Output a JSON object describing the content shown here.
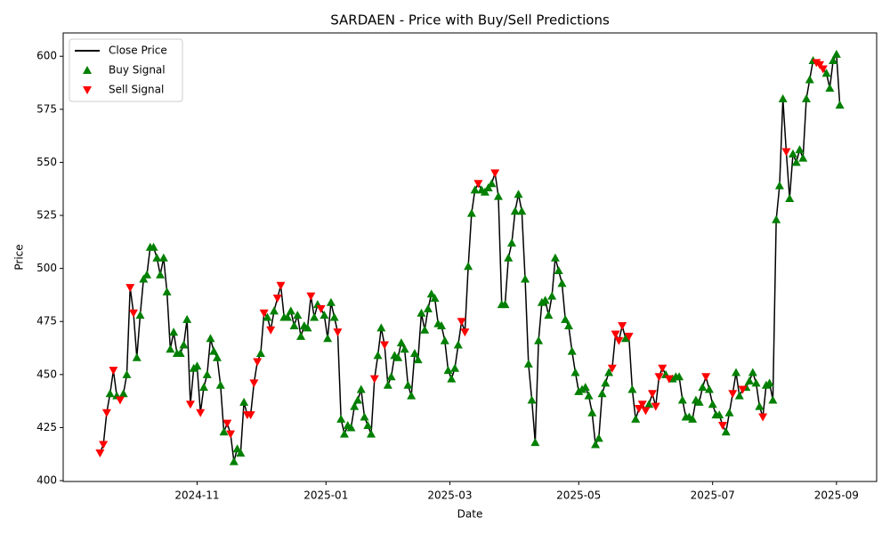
{
  "chart_data": {
    "type": "line",
    "title": "SARDAEN - Price with Buy/Sell Predictions",
    "x_label": "Date",
    "y_label": "Price",
    "categories": [
      null,
      null,
      null,
      null,
      null,
      null,
      null,
      null,
      null,
      null,
      null,
      null,
      null,
      null,
      null,
      null,
      null,
      null,
      null,
      null,
      null,
      null,
      null,
      null,
      null,
      null,
      null,
      null,
      null,
      null,
      null,
      null,
      null,
      null,
      null,
      null,
      null,
      null,
      null,
      null,
      null,
      null,
      null,
      null,
      null,
      null,
      null,
      null,
      null,
      null,
      null,
      null,
      null,
      null,
      null,
      null,
      null,
      null,
      null,
      null,
      null,
      null,
      null,
      null,
      null,
      null,
      null,
      null,
      null,
      null,
      null,
      null,
      null,
      null,
      null,
      null,
      null,
      null,
      null,
      null,
      null,
      null,
      null,
      null,
      null,
      null,
      null,
      null,
      null,
      null,
      null,
      null,
      null,
      null,
      null,
      null,
      null,
      null,
      null,
      null,
      null,
      null,
      null,
      null,
      null,
      null,
      null,
      null,
      null,
      null,
      null,
      null,
      null,
      null,
      null,
      null,
      null,
      null,
      null,
      null,
      null,
      null,
      null,
      null,
      null,
      null,
      null,
      null,
      null,
      null,
      null,
      null,
      null,
      null,
      null,
      null,
      null,
      null,
      null,
      null,
      null,
      null,
      null,
      null,
      null,
      null,
      null,
      null,
      null,
      null,
      null,
      null,
      null,
      null,
      null,
      null,
      null,
      null,
      null,
      null,
      null,
      null,
      null,
      null,
      null,
      null,
      null,
      null,
      null,
      null,
      null,
      null,
      null,
      null,
      null,
      null,
      null,
      null,
      null,
      null,
      null,
      null,
      null,
      null,
      null,
      null,
      null,
      null,
      null,
      null,
      null,
      null,
      null,
      null,
      null,
      null,
      null,
      null,
      null,
      null,
      null,
      null,
      null,
      null,
      null,
      null,
      null,
      null,
      null,
      null,
      null,
      null,
      null,
      null,
      null,
      null,
      null,
      null,
      null,
      null,
      null,
      null
    ],
    "series": [
      {
        "name": "Close Price",
        "color": "#000000",
        "values": [
          413,
          417,
          432,
          441,
          452,
          440,
          438,
          441,
          450,
          491,
          479,
          458,
          478,
          495,
          497,
          510,
          510,
          505,
          497,
          505,
          489,
          462,
          470,
          460,
          460,
          464,
          476,
          436,
          453,
          454,
          432,
          444,
          450,
          467,
          461,
          458,
          445,
          423,
          427,
          422,
          409,
          415,
          413,
          437,
          431,
          431,
          446,
          456,
          460,
          479,
          477,
          471,
          480,
          486,
          492,
          477,
          477,
          480,
          473,
          478,
          468,
          473,
          472,
          487,
          477,
          483,
          481,
          478,
          467,
          484,
          477,
          470,
          429,
          422,
          426,
          425,
          435,
          438,
          443,
          430,
          426,
          422,
          448,
          459,
          472,
          464,
          445,
          449,
          459,
          458,
          465,
          462,
          445,
          440,
          460,
          457,
          479,
          471,
          481,
          488,
          486,
          474,
          473,
          466,
          452,
          448,
          453,
          464,
          475,
          470,
          501,
          526,
          537,
          540,
          537,
          536,
          538,
          540,
          545,
          534,
          483,
          483,
          505,
          512,
          527,
          535,
          527,
          495,
          455,
          438,
          418,
          466,
          484,
          485,
          478,
          487,
          505,
          499,
          493,
          476,
          473,
          461,
          451,
          442,
          443,
          444,
          440,
          432,
          417,
          420,
          441,
          446,
          451,
          453,
          469,
          466,
          473,
          467,
          468,
          443,
          429,
          434,
          436,
          433,
          436,
          441,
          435,
          449,
          453,
          450,
          448,
          448,
          449,
          449,
          438,
          430,
          430,
          429,
          438,
          437,
          444,
          449,
          443,
          436,
          431,
          431,
          426,
          423,
          432,
          441,
          451,
          440,
          443,
          444,
          447,
          451,
          446,
          435,
          430,
          445,
          446,
          438,
          523,
          539,
          580,
          555,
          533,
          554,
          550,
          556,
          552,
          580,
          589,
          598,
          597,
          596,
          594,
          592,
          585,
          598,
          601,
          577
        ]
      },
      {
        "name": "Buy Signal",
        "color": "#008000",
        "marker": "triangle-up",
        "values": [
          null,
          null,
          null,
          441,
          null,
          440,
          null,
          441,
          450,
          null,
          null,
          458,
          478,
          495,
          497,
          510,
          510,
          505,
          497,
          505,
          489,
          462,
          470,
          460,
          460,
          464,
          476,
          null,
          453,
          454,
          null,
          444,
          450,
          467,
          461,
          458,
          445,
          423,
          null,
          null,
          409,
          415,
          413,
          437,
          null,
          null,
          null,
          null,
          460,
          null,
          477,
          null,
          480,
          null,
          null,
          477,
          477,
          480,
          473,
          478,
          468,
          473,
          472,
          null,
          477,
          483,
          null,
          478,
          467,
          484,
          477,
          null,
          429,
          422,
          426,
          425,
          435,
          438,
          443,
          430,
          426,
          422,
          null,
          459,
          472,
          null,
          445,
          449,
          459,
          458,
          465,
          462,
          445,
          440,
          460,
          457,
          479,
          471,
          481,
          488,
          486,
          474,
          473,
          466,
          452,
          448,
          453,
          464,
          null,
          null,
          501,
          526,
          537,
          null,
          537,
          536,
          538,
          540,
          null,
          534,
          483,
          483,
          505,
          512,
          527,
          535,
          527,
          495,
          455,
          438,
          418,
          466,
          484,
          485,
          478,
          487,
          505,
          499,
          493,
          476,
          473,
          461,
          451,
          442,
          443,
          444,
          440,
          432,
          417,
          420,
          441,
          446,
          451,
          null,
          null,
          null,
          null,
          467,
          null,
          443,
          429,
          null,
          null,
          null,
          436,
          null,
          null,
          null,
          null,
          450,
          null,
          448,
          449,
          449,
          438,
          430,
          430,
          429,
          438,
          437,
          444,
          null,
          443,
          436,
          431,
          431,
          null,
          423,
          432,
          null,
          451,
          440,
          null,
          444,
          447,
          451,
          446,
          435,
          null,
          445,
          446,
          438,
          523,
          539,
          580,
          null,
          533,
          554,
          550,
          556,
          552,
          580,
          589,
          598,
          null,
          null,
          null,
          592,
          585,
          598,
          601,
          577
        ]
      },
      {
        "name": "Sell Signal",
        "color": "#ff0000",
        "marker": "triangle-down",
        "values": [
          413,
          417,
          432,
          null,
          452,
          null,
          438,
          null,
          null,
          491,
          479,
          null,
          null,
          null,
          null,
          null,
          null,
          null,
          null,
          null,
          null,
          null,
          null,
          null,
          null,
          null,
          null,
          436,
          null,
          null,
          432,
          null,
          null,
          null,
          null,
          null,
          null,
          null,
          427,
          422,
          null,
          null,
          null,
          null,
          431,
          431,
          446,
          456,
          null,
          479,
          null,
          471,
          null,
          486,
          492,
          null,
          null,
          null,
          null,
          null,
          null,
          null,
          null,
          487,
          null,
          null,
          481,
          null,
          null,
          null,
          null,
          470,
          null,
          null,
          null,
          null,
          null,
          null,
          null,
          null,
          null,
          null,
          448,
          null,
          null,
          464,
          null,
          null,
          null,
          null,
          null,
          null,
          null,
          null,
          null,
          null,
          null,
          null,
          null,
          null,
          null,
          null,
          null,
          null,
          null,
          null,
          null,
          null,
          475,
          470,
          null,
          null,
          null,
          540,
          null,
          null,
          null,
          null,
          545,
          null,
          null,
          null,
          null,
          null,
          null,
          null,
          null,
          null,
          null,
          null,
          null,
          null,
          null,
          null,
          null,
          null,
          null,
          null,
          null,
          null,
          null,
          null,
          null,
          null,
          null,
          null,
          null,
          null,
          null,
          null,
          null,
          null,
          null,
          453,
          469,
          466,
          473,
          null,
          468,
          null,
          null,
          434,
          436,
          433,
          null,
          441,
          435,
          449,
          453,
          null,
          448,
          null,
          null,
          null,
          null,
          null,
          null,
          null,
          null,
          null,
          null,
          449,
          null,
          null,
          null,
          null,
          426,
          null,
          null,
          441,
          null,
          null,
          443,
          null,
          null,
          null,
          null,
          null,
          430,
          null,
          null,
          null,
          null,
          null,
          null,
          555,
          null,
          null,
          null,
          null,
          null,
          null,
          null,
          null,
          597,
          596,
          594,
          null,
          null,
          null,
          null,
          null
        ]
      }
    ],
    "xlim": [
      -11,
      232
    ],
    "xticks": [
      {
        "value": 29,
        "label": "2024-11"
      },
      {
        "value": 67.5,
        "label": "2025-01"
      },
      {
        "value": 104.5,
        "label": "2025-03"
      },
      {
        "value": 143,
        "label": "2025-05"
      },
      {
        "value": 183,
        "label": "2025-07"
      },
      {
        "value": 220,
        "label": "2025-09"
      }
    ],
    "ylim": [
      399.6,
      611
    ],
    "yticks": [
      400,
      425,
      450,
      475,
      500,
      525,
      550,
      575,
      600
    ],
    "grid": false,
    "legend": "upper left"
  }
}
